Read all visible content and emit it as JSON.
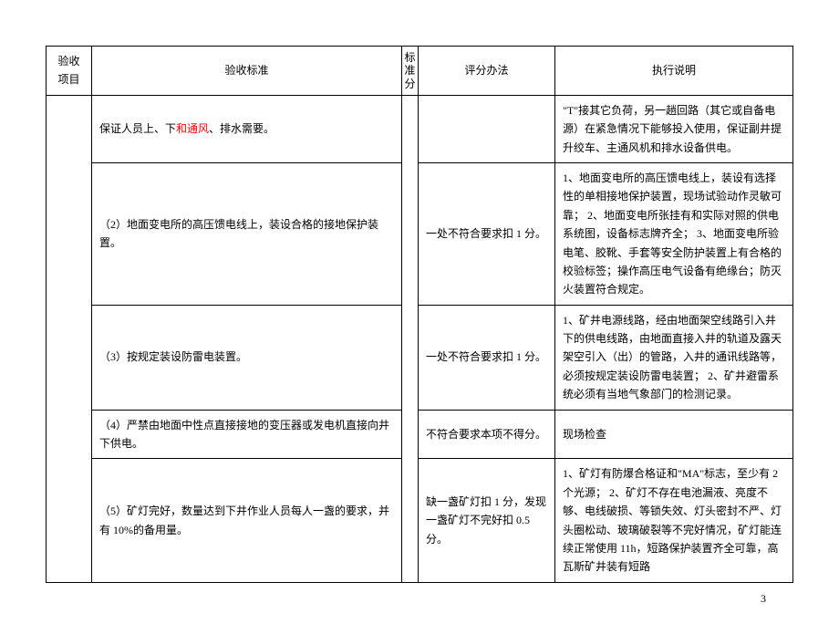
{
  "header": {
    "col_item": "验收项目",
    "col_standard": "验收标准",
    "col_score": "标准分",
    "col_method": "评分办法",
    "col_exec": "执行说明"
  },
  "rows": [
    {
      "standard_pre": "保证人员上、下",
      "standard_hi": "和通风",
      "standard_post": "、排水需要。",
      "method": "",
      "exec": "\"T\"接其它负荷，另一趟回路（其它或自备电源）在紧急情况下能够投入使用，保证副井提升绞车、主通风机和排水设备供电。"
    },
    {
      "standard": "（2）地面变电所的高压馈电线上，装设合格的接地保护装置。",
      "method": "一处不符合要求扣 1 分。",
      "exec": "1、地面变电所的高压馈电线上，装设有选择性的单相接地保护装置，现场试验动作灵敏可靠；\n2、地面变电所张挂有和实际对照的供电系统图，设备标志牌齐全；\n3、地面变电所验电笔、胶靴、手套等安全防护装置上有合格的校验标签；操作高压电气设备有绝缘台；防灭火装置符合规定。"
    },
    {
      "standard": "（3）按规定装设防雷电装置。",
      "method": "一处不符合要求扣 1 分。",
      "exec": "1、矿井电源线路，经由地面架空线路引入井下的供电线路，由地面直接入井的轨道及露天架空引入（出）的管路，入井的通讯线路等，必须按规定装设防雷电装置；\n2、矿井避雷系统必须有当地气象部门的检测记录。"
    },
    {
      "standard": "（4）严禁由地面中性点直接接地的变压器或发电机直接向井下供电。",
      "method": "不符合要求本项不得分。",
      "exec": "现场检查"
    },
    {
      "standard": "（5）矿灯完好，数量达到下井作业人员每人一盏的要求，并有 10%的备用量。",
      "method": "缺一盏矿灯扣 1 分，发现一盏矿灯不完好扣 0.5 分。",
      "exec": "1、矿灯有防爆合格证和\"MA\"标志，至少有 2 个光源；\n2、矿灯不存在电池漏液、亮度不够、电线破损、等锁失效、灯头密封不严、灯头圈松动、玻璃破裂等不完好情况，矿灯能连续正常使用 11h，短路保护装置齐全可靠，高瓦斯矿井装有短路"
    }
  ],
  "page_number": "3"
}
